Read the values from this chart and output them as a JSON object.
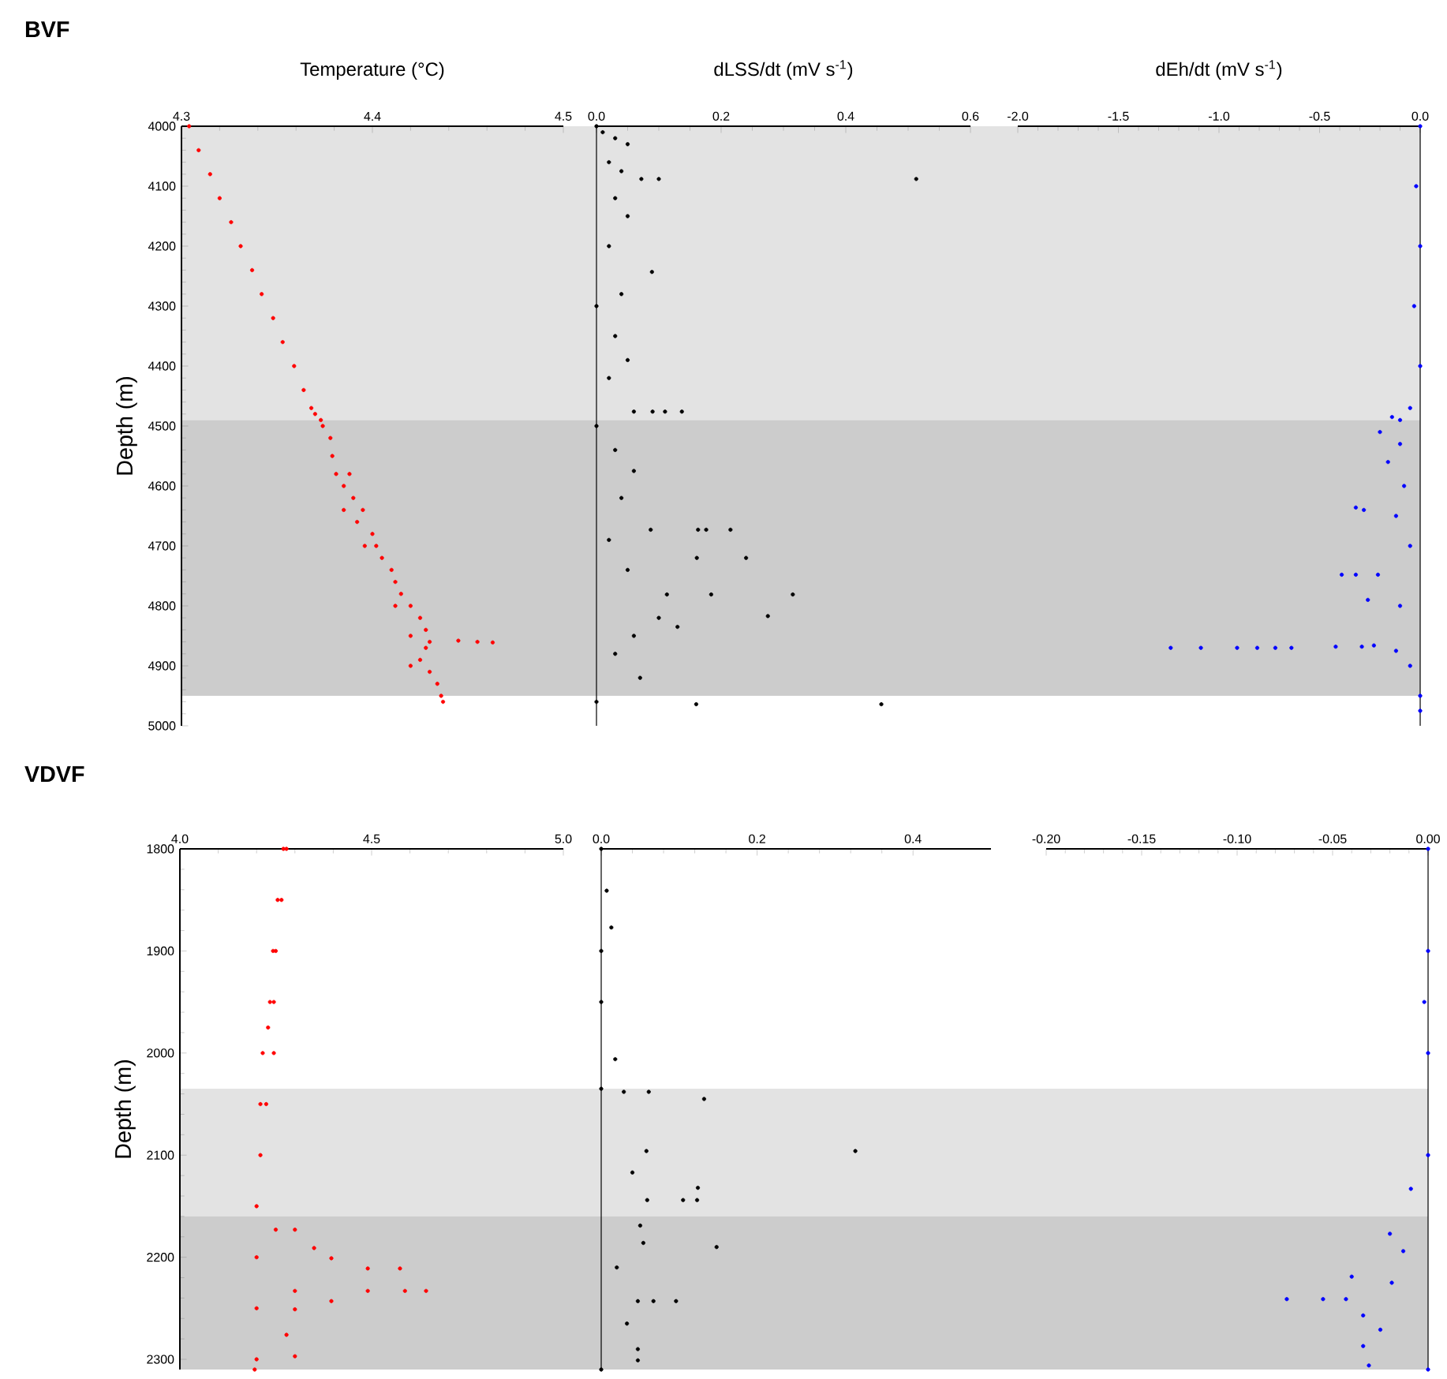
{
  "chart_data": [
    {
      "type": "scatter",
      "title": "BVF",
      "xlabel": "Temperature (°C)",
      "ylabel": "Depth (m)",
      "marker": "circle",
      "xlim": [
        4.3,
        4.5
      ],
      "xticks": [
        4.3,
        4.4,
        4.5
      ],
      "ylim": [
        5000,
        4000
      ],
      "yticks": [
        4000,
        4100,
        4200,
        4300,
        4400,
        4500,
        4600,
        4700,
        4800,
        4900,
        5000
      ],
      "bands": [
        {
          "axis": "y",
          "from": 4000,
          "to": 4490,
          "color": "#e3e3e3"
        },
        {
          "axis": "y",
          "from": 4490,
          "to": 4950,
          "color": "#cccccc"
        }
      ],
      "series": [
        {
          "color": "#ff0000",
          "x": [
            4.304,
            4.309,
            4.315,
            4.32,
            4.326,
            4.331,
            4.337,
            4.342,
            4.348,
            4.353,
            4.359,
            4.364,
            4.368,
            4.37,
            4.373,
            4.374,
            4.378,
            4.379,
            4.381,
            4.385,
            4.388,
            4.39,
            4.395,
            4.392,
            4.4,
            4.402,
            4.405,
            4.41,
            4.412,
            4.415,
            4.42,
            4.425,
            4.428,
            4.43,
            4.445,
            4.455,
            4.463,
            4.428,
            4.425,
            4.43,
            4.434,
            4.436,
            4.437,
            4.385,
            4.396,
            4.412,
            4.42,
            4.42
          ],
          "values": [
            4000,
            4040,
            4080,
            4120,
            4160,
            4200,
            4240,
            4280,
            4320,
            4360,
            4400,
            4440,
            4470,
            4480,
            4490,
            4500,
            4520,
            4550,
            4580,
            4600,
            4580,
            4620,
            4640,
            4660,
            4680,
            4700,
            4720,
            4740,
            4760,
            4780,
            4800,
            4820,
            4840,
            4860,
            4858,
            4860,
            4861,
            4870,
            4890,
            4910,
            4930,
            4950,
            4960,
            4640,
            4700,
            4800,
            4850,
            4900
          ]
        }
      ]
    },
    {
      "type": "scatter",
      "xlabel": "dLSS/dt (mV s$^{-1}$)",
      "marker": "circle",
      "tick_labels": "x",
      "xlim": [
        0,
        0.6
      ],
      "xticks": [
        {
          "value": 0,
          "label": "0.0"
        },
        0.2,
        0.4,
        0.6
      ],
      "ylim": [
        5000,
        4000
      ],
      "bands": [
        {
          "axis": "y",
          "from": 4000,
          "to": 4490,
          "color": "#e3e3e3"
        },
        {
          "axis": "y",
          "from": 4490,
          "to": 4950,
          "color": "#cccccc"
        }
      ],
      "series": [
        {
          "color": "#000000",
          "x": [
            0.0,
            0.01,
            0.03,
            0.05,
            0.02,
            0.04,
            0.072,
            0.1,
            0.513,
            0.03,
            0.05,
            0.02,
            0.089,
            0.04,
            0.0,
            0.03,
            0.05,
            0.02,
            0.06,
            0.09,
            0.11,
            0.137,
            0.0,
            0.03,
            0.06,
            0.04,
            0.087,
            0.163,
            0.176,
            0.215,
            0.02,
            0.161,
            0.24,
            0.05,
            0.113,
            0.184,
            0.315,
            0.275,
            0.1,
            0.13,
            0.06,
            0.03,
            0.07,
            0.0,
            0.16,
            0.457
          ],
          "values": [
            4000,
            4010,
            4020,
            4030,
            4060,
            4075,
            4088,
            4088,
            4088,
            4120,
            4150,
            4200,
            4243,
            4280,
            4300,
            4350,
            4390,
            4420,
            4476,
            4476,
            4476,
            4476,
            4500,
            4540,
            4575,
            4620,
            4673,
            4673,
            4673,
            4673,
            4690,
            4720,
            4720,
            4740,
            4781,
            4781,
            4781,
            4817,
            4820,
            4835,
            4850,
            4880,
            4920,
            4960,
            4964,
            4964
          ]
        }
      ]
    },
    {
      "type": "scatter",
      "xlabel": "dEh/dt (mV s$^{-1}$)",
      "marker": "circle",
      "tick_labels": "x",
      "xlim": [
        -2.0,
        0.0
      ],
      "xticks": [
        {
          "value": -2.0,
          "label": "-2.0"
        },
        -1.5,
        {
          "value": -1.0,
          "label": "-1.0"
        },
        -0.5,
        {
          "value": 0,
          "label": "0.0"
        }
      ],
      "ylim": [
        5000,
        4000
      ],
      "bands": [
        {
          "axis": "y",
          "from": 4000,
          "to": 4490,
          "color": "#e3e3e3"
        },
        {
          "axis": "y",
          "from": 4490,
          "to": 4950,
          "color": "#cccccc"
        }
      ],
      "series": [
        {
          "color": "#0000ff",
          "x": [
            0.0,
            -0.02,
            0.0,
            -0.03,
            0.0,
            -0.05,
            -0.14,
            -0.1,
            -0.2,
            -0.1,
            -0.16,
            -0.08,
            -0.32,
            -0.28,
            -0.12,
            -0.05,
            -0.39,
            -0.32,
            -0.21,
            -0.26,
            -0.1,
            -1.24,
            -1.09,
            -0.91,
            -0.81,
            -0.72,
            -0.64,
            -0.42,
            -0.29,
            -0.23,
            -0.12,
            -0.05,
            0.0,
            0.0
          ],
          "values": [
            4000,
            4100,
            4200,
            4300,
            4400,
            4470,
            4485,
            4490,
            4510,
            4530,
            4560,
            4600,
            4636,
            4640,
            4650,
            4700,
            4748,
            4748,
            4748,
            4790,
            4800,
            4870,
            4870,
            4870,
            4870,
            4870,
            4870,
            4868,
            4868,
            4866,
            4875,
            4900,
            4950,
            4975
          ]
        }
      ]
    },
    {
      "type": "scatter",
      "title": "VDVF",
      "ylabel": "Depth (m)",
      "marker": "circle",
      "xlim": [
        4.0,
        5.0
      ],
      "xticks": [
        {
          "value": 4.0,
          "label": "4.0"
        },
        4.5,
        {
          "value": 5.0,
          "label": "5.0"
        }
      ],
      "ylim": [
        2310,
        1800
      ],
      "yticks": [
        1800,
        1900,
        2000,
        2100,
        2200,
        2300
      ],
      "bands": [
        {
          "axis": "y",
          "from": 2035,
          "to": 2160,
          "color": "#e3e3e3"
        },
        {
          "axis": "y",
          "from": 2160,
          "to": 2310,
          "color": "#cccccc"
        }
      ],
      "series": [
        {
          "color": "#ff0000",
          "x": [
            4.278,
            4.27,
            4.265,
            4.255,
            4.243,
            4.25,
            4.235,
            4.245,
            4.23,
            4.245,
            4.216,
            4.21,
            4.225,
            4.21,
            4.2,
            4.2,
            4.25,
            4.3,
            4.35,
            4.395,
            4.49,
            4.574,
            4.3,
            4.49,
            4.587,
            4.642,
            4.395,
            4.3,
            4.278,
            4.3,
            4.2,
            4.195,
            4.2
          ],
          "values": [
            1800,
            1800,
            1850,
            1850,
            1900,
            1900,
            1950,
            1950,
            1975,
            2000,
            2000,
            2050,
            2050,
            2100,
            2150,
            2200,
            2173,
            2173,
            2191,
            2201,
            2211,
            2211,
            2233,
            2233,
            2233,
            2233,
            2243,
            2251,
            2276,
            2297,
            2250,
            2310,
            2300
          ]
        }
      ]
    },
    {
      "type": "scatter",
      "marker": "circle",
      "tick_labels": "x",
      "xlim": [
        0,
        0.5
      ],
      "xticks": [
        {
          "value": 0,
          "label": "0.0"
        },
        0.2,
        0.4
      ],
      "ylim": [
        2310,
        1800
      ],
      "bands": [
        {
          "axis": "y",
          "from": 2035,
          "to": 2160,
          "color": "#e3e3e3"
        },
        {
          "axis": "y",
          "from": 2160,
          "to": 2310,
          "color": "#cccccc"
        }
      ],
      "series": [
        {
          "color": "#000000",
          "x": [
            0.0,
            0.007,
            0.013,
            0.0,
            0.0,
            0.018,
            0.0,
            0.029,
            0.061,
            0.132,
            0.058,
            0.326,
            0.04,
            0.124,
            0.059,
            0.105,
            0.123,
            0.05,
            0.054,
            0.148,
            0.02,
            0.047,
            0.067,
            0.096,
            0.033,
            0.047,
            0.047,
            0.0
          ],
          "values": [
            1800,
            1841,
            1877,
            1900,
            1950,
            2006,
            2035,
            2038,
            2038,
            2045,
            2096,
            2096,
            2117,
            2132,
            2144,
            2144,
            2144,
            2169,
            2186,
            2190,
            2210,
            2243,
            2243,
            2243,
            2265,
            2290,
            2301,
            2310
          ]
        }
      ]
    },
    {
      "type": "scatter",
      "marker": "circle",
      "tick_labels": "x",
      "xlim": [
        -0.2,
        0.0
      ],
      "xticks": [
        {
          "value": -0.2,
          "label": "-0.20"
        },
        -0.15,
        {
          "value": -0.1,
          "label": "-0.10"
        },
        -0.05,
        {
          "value": 0,
          "label": "0.00"
        }
      ],
      "ylim": [
        2310,
        1800
      ],
      "bands": [
        {
          "axis": "y",
          "from": 2035,
          "to": 2160,
          "color": "#e3e3e3"
        },
        {
          "axis": "y",
          "from": 2160,
          "to": 2310,
          "color": "#cccccc"
        }
      ],
      "series": [
        {
          "color": "#0000ff",
          "x": [
            0.0,
            0.0,
            -0.002,
            0.0,
            0.0,
            -0.009,
            -0.02,
            -0.013,
            -0.04,
            -0.019,
            -0.074,
            -0.055,
            -0.043,
            -0.034,
            -0.025,
            -0.034,
            -0.031,
            0.0
          ],
          "values": [
            1800,
            1900,
            1950,
            2000,
            2100,
            2133,
            2177,
            2194,
            2219,
            2225,
            2241,
            2241,
            2241,
            2257,
            2271,
            2287,
            2306,
            2310
          ]
        }
      ]
    }
  ]
}
